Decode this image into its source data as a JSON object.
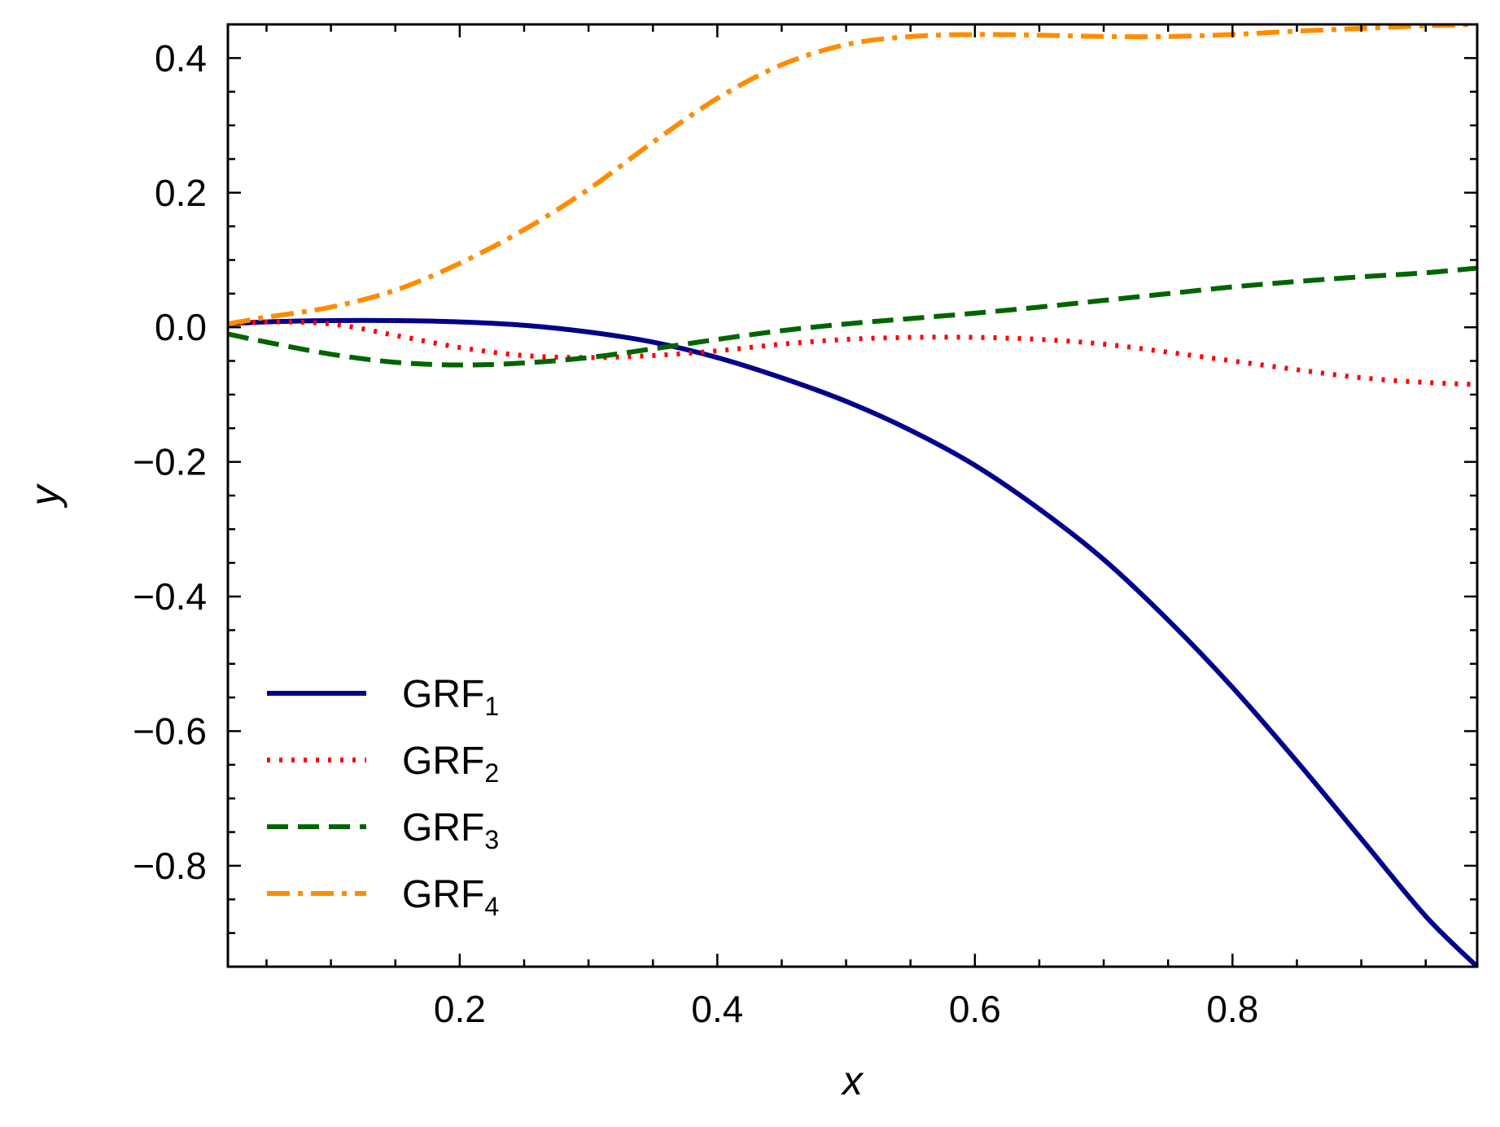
{
  "chart_data": {
    "type": "line",
    "xlabel": "x",
    "ylabel": "y",
    "xlim": [
      0.02,
      0.99
    ],
    "ylim": [
      -0.95,
      0.45
    ],
    "xticks": [
      0.2,
      0.4,
      0.6,
      0.8
    ],
    "xtick_labels": [
      "0.2",
      "0.4",
      "0.6",
      "0.8"
    ],
    "yticks": [
      0.4,
      0.2,
      0.0,
      -0.2,
      -0.4,
      -0.6,
      -0.8
    ],
    "ytick_labels": [
      "0.4",
      "0.2",
      "0.0",
      "−0.2",
      "−0.4",
      "−0.6",
      "−0.8"
    ],
    "grid": false,
    "legend_position": "lower-left",
    "series": [
      {
        "name": "GRF",
        "subscript": "1",
        "color": "#00008b",
        "style": "solid",
        "x": [
          0.02,
          0.05,
          0.1,
          0.15,
          0.2,
          0.25,
          0.3,
          0.35,
          0.4,
          0.45,
          0.5,
          0.55,
          0.6,
          0.65,
          0.7,
          0.75,
          0.8,
          0.85,
          0.9,
          0.95,
          0.99
        ],
        "y": [
          0.005,
          0.008,
          0.01,
          0.01,
          0.008,
          0.003,
          -0.007,
          -0.022,
          -0.045,
          -0.075,
          -0.11,
          -0.153,
          -0.205,
          -0.27,
          -0.345,
          -0.435,
          -0.535,
          -0.645,
          -0.76,
          -0.875,
          -0.95
        ]
      },
      {
        "name": "GRF",
        "subscript": "2",
        "color": "#ff0000",
        "style": "dotted",
        "x": [
          0.02,
          0.05,
          0.1,
          0.15,
          0.2,
          0.25,
          0.3,
          0.35,
          0.4,
          0.45,
          0.5,
          0.55,
          0.6,
          0.65,
          0.7,
          0.75,
          0.8,
          0.85,
          0.9,
          0.95,
          0.99
        ],
        "y": [
          0.005,
          0.008,
          0.005,
          -0.012,
          -0.03,
          -0.042,
          -0.045,
          -0.042,
          -0.035,
          -0.025,
          -0.018,
          -0.015,
          -0.015,
          -0.018,
          -0.025,
          -0.037,
          -0.05,
          -0.063,
          -0.075,
          -0.082,
          -0.085
        ]
      },
      {
        "name": "GRF",
        "subscript": "3",
        "color": "#006400",
        "style": "dashed",
        "x": [
          0.02,
          0.05,
          0.1,
          0.15,
          0.2,
          0.25,
          0.3,
          0.35,
          0.4,
          0.45,
          0.5,
          0.55,
          0.6,
          0.65,
          0.7,
          0.75,
          0.8,
          0.85,
          0.9,
          0.95,
          0.99
        ],
        "y": [
          -0.01,
          -0.022,
          -0.04,
          -0.052,
          -0.056,
          -0.053,
          -0.045,
          -0.032,
          -0.018,
          -0.005,
          0.005,
          0.013,
          0.021,
          0.03,
          0.04,
          0.05,
          0.06,
          0.068,
          0.075,
          0.081,
          0.088
        ]
      },
      {
        "name": "GRF",
        "subscript": "4",
        "color": "#ff8c00",
        "style": "dashdot",
        "x": [
          0.02,
          0.05,
          0.1,
          0.15,
          0.2,
          0.25,
          0.3,
          0.35,
          0.4,
          0.45,
          0.5,
          0.55,
          0.6,
          0.65,
          0.7,
          0.75,
          0.8,
          0.85,
          0.9,
          0.95,
          0.99
        ],
        "y": [
          0.005,
          0.015,
          0.03,
          0.055,
          0.095,
          0.145,
          0.205,
          0.275,
          0.34,
          0.39,
          0.42,
          0.432,
          0.435,
          0.434,
          0.432,
          0.432,
          0.435,
          0.44,
          0.444,
          0.448,
          0.45
        ]
      }
    ]
  }
}
